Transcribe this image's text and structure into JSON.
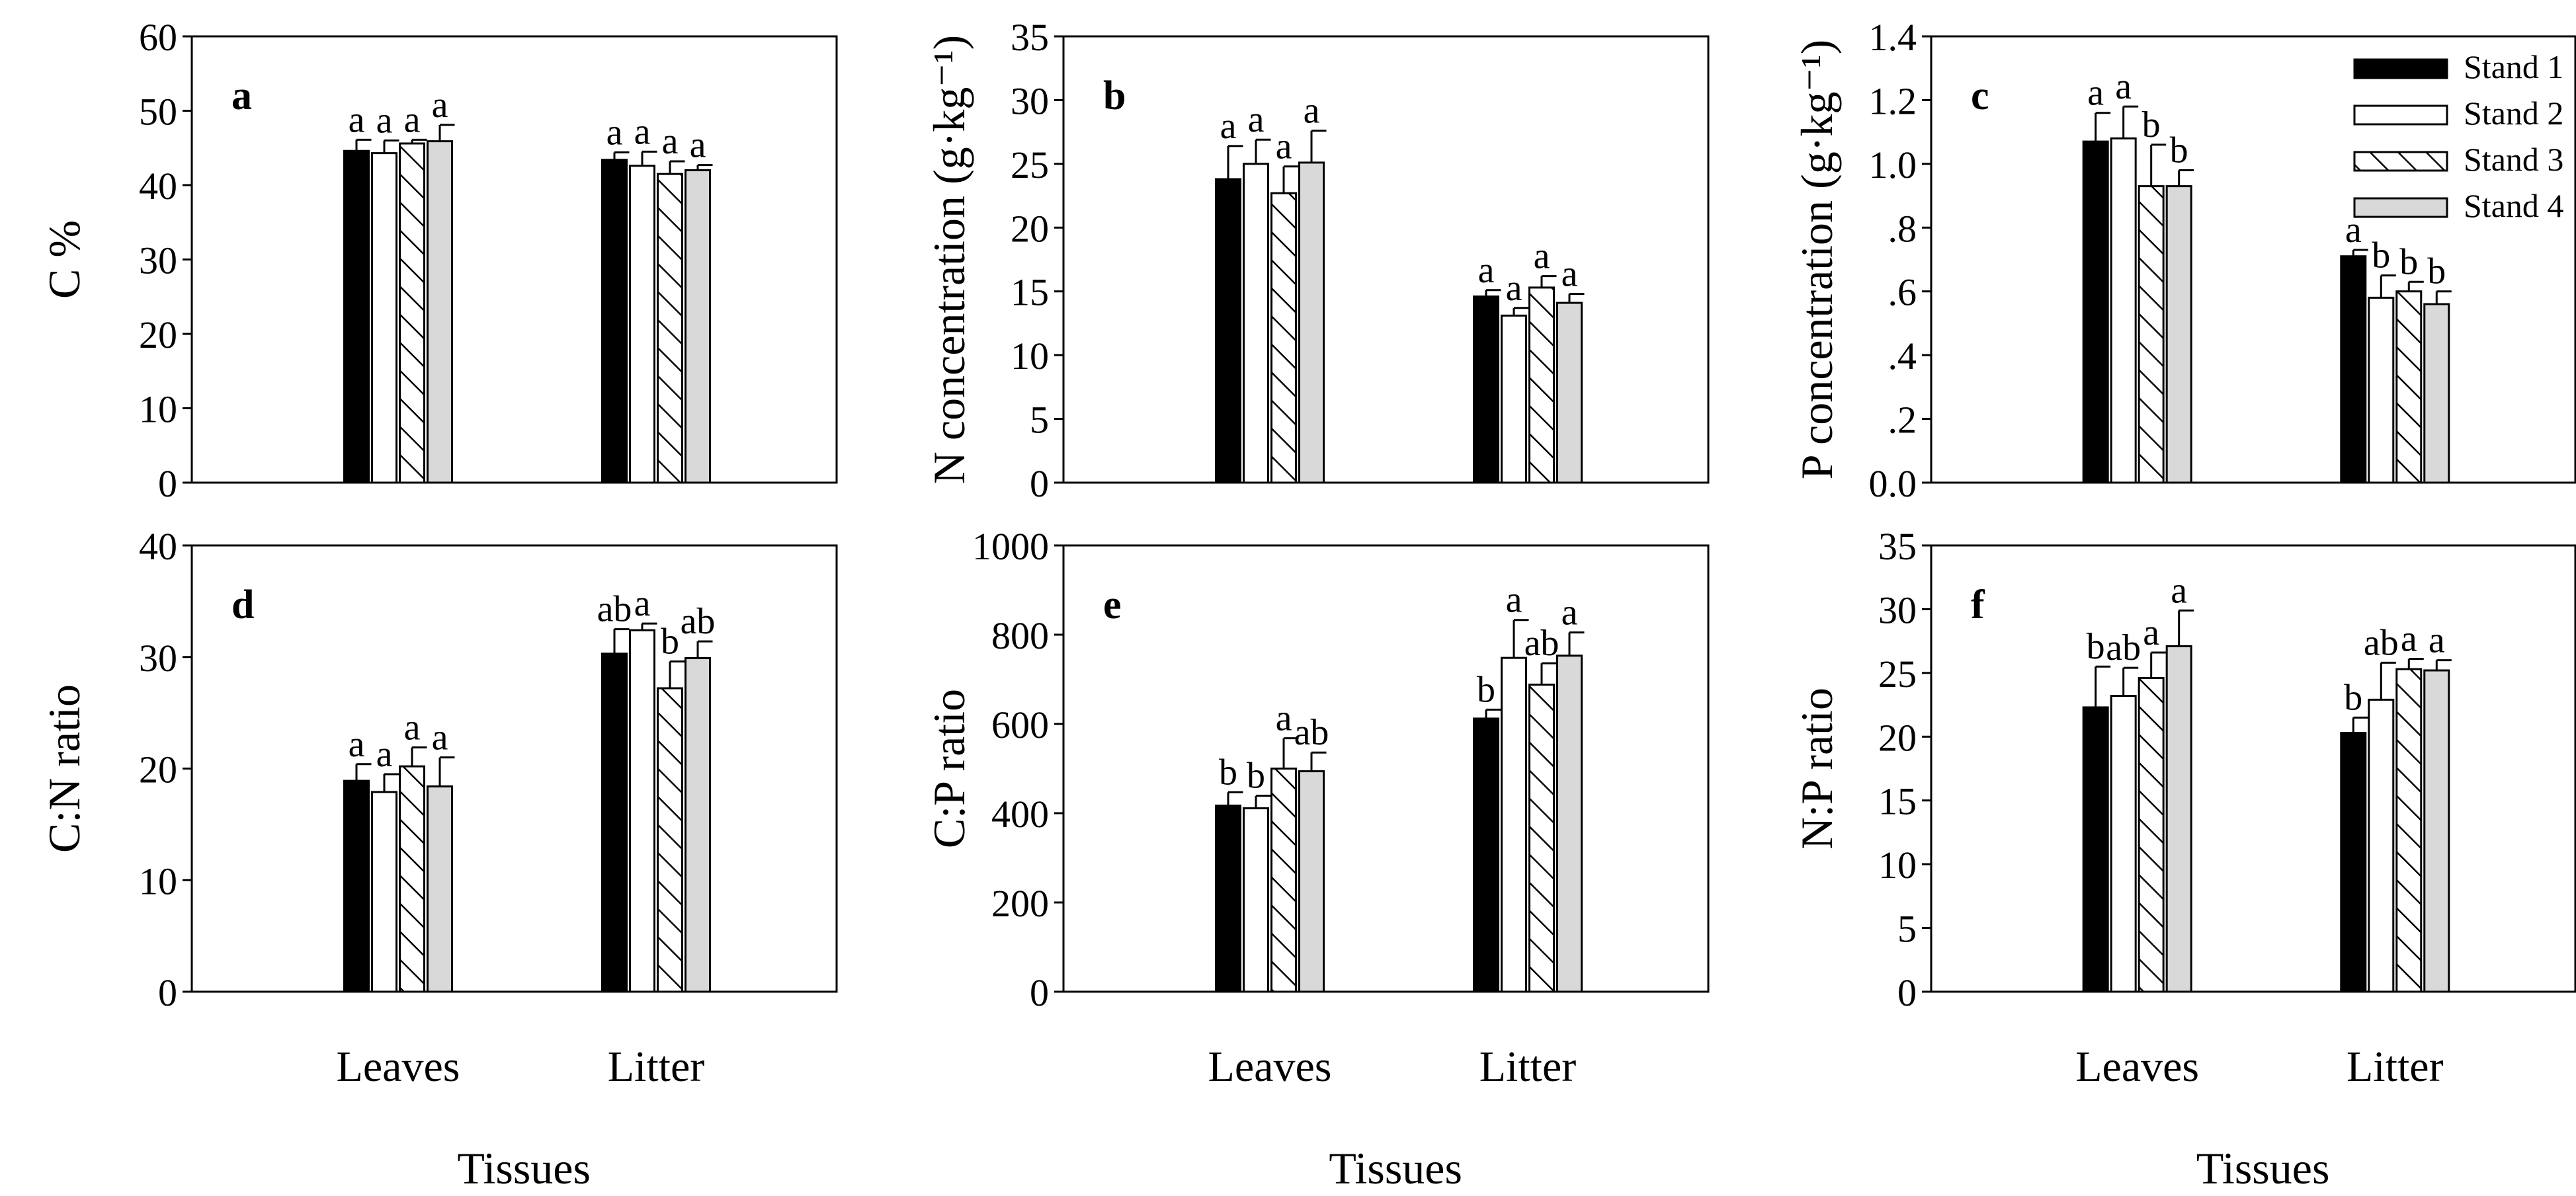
{
  "shared": {
    "categories": [
      "Leaves",
      "Litter"
    ],
    "series": [
      "Stand 1",
      "Stand 2",
      "Stand 3",
      "Stand 4"
    ],
    "xlabel": "Tissues",
    "colors": {
      "stand1": "#000000",
      "stand2": "#ffffff",
      "stand3": "#ffffff",
      "stand4": "#d9d9d9",
      "axis": "#000000"
    }
  },
  "chart_data": [
    {
      "type": "bar",
      "panel": "a",
      "ylabel": "C %",
      "ylim": [
        0,
        60
      ],
      "yticks": [
        0,
        10,
        20,
        30,
        40,
        50,
        60
      ],
      "yticklabels": [
        "0",
        "10",
        "20",
        "30",
        "40",
        "50",
        "60"
      ],
      "categories": [
        "Leaves",
        "Litter"
      ],
      "series": [
        {
          "name": "Stand 1",
          "values": [
            44.6,
            43.4
          ],
          "errors": [
            1.5,
            1.0
          ],
          "letters": [
            "a",
            "a"
          ]
        },
        {
          "name": "Stand 2",
          "values": [
            44.3,
            42.6
          ],
          "errors": [
            1.7,
            1.9
          ],
          "letters": [
            "a",
            "a"
          ]
        },
        {
          "name": "Stand 3",
          "values": [
            45.6,
            41.5
          ],
          "errors": [
            0.5,
            1.7
          ],
          "letters": [
            "a",
            "a"
          ]
        },
        {
          "name": "Stand 4",
          "values": [
            45.9,
            42.0
          ],
          "errors": [
            2.2,
            0.7
          ],
          "letters": [
            "a",
            "a"
          ]
        }
      ]
    },
    {
      "type": "bar",
      "panel": "b",
      "ylabel": "N concentration (g·kg⁻¹)",
      "ylim": [
        0,
        35
      ],
      "yticks": [
        0,
        5,
        10,
        15,
        20,
        25,
        30,
        35
      ],
      "yticklabels": [
        "0",
        "5",
        "10",
        "15",
        "20",
        "25",
        "30",
        "35"
      ],
      "categories": [
        "Leaves",
        "Litter"
      ],
      "series": [
        {
          "name": "Stand 1",
          "values": [
            23.8,
            14.6
          ],
          "errors": [
            2.6,
            0.5
          ],
          "letters": [
            "a",
            "a"
          ]
        },
        {
          "name": "Stand 2",
          "values": [
            25.0,
            13.1
          ],
          "errors": [
            1.9,
            0.6
          ],
          "letters": [
            "a",
            "a"
          ]
        },
        {
          "name": "Stand 3",
          "values": [
            22.7,
            15.3
          ],
          "errors": [
            2.1,
            0.9
          ],
          "letters": [
            "a",
            "a"
          ]
        },
        {
          "name": "Stand 4",
          "values": [
            25.1,
            14.1
          ],
          "errors": [
            2.5,
            0.7
          ],
          "letters": [
            "a",
            "a"
          ]
        }
      ]
    },
    {
      "type": "bar",
      "panel": "c",
      "ylabel": "P concentration (g·kg⁻¹)",
      "ylim": [
        0,
        1.4
      ],
      "yticks": [
        0,
        0.2,
        0.4,
        0.6,
        0.8,
        1.0,
        1.2,
        1.4
      ],
      "yticklabels": [
        "0.0",
        ".2",
        ".4",
        ".6",
        ".8",
        "1.0",
        "1.2",
        "1.4"
      ],
      "categories": [
        "Leaves",
        "Litter"
      ],
      "series": [
        {
          "name": "Stand 1",
          "values": [
            1.07,
            0.71
          ],
          "errors": [
            0.09,
            0.02
          ],
          "letters": [
            "a",
            "a"
          ]
        },
        {
          "name": "Stand 2",
          "values": [
            1.08,
            0.58
          ],
          "errors": [
            0.1,
            0.07
          ],
          "letters": [
            "a",
            "b"
          ]
        },
        {
          "name": "Stand 3",
          "values": [
            0.93,
            0.6
          ],
          "errors": [
            0.13,
            0.03
          ],
          "letters": [
            "b",
            "b"
          ]
        },
        {
          "name": "Stand 4",
          "values": [
            0.93,
            0.56
          ],
          "errors": [
            0.05,
            0.04
          ],
          "letters": [
            "b",
            "b"
          ]
        }
      ]
    },
    {
      "type": "bar",
      "panel": "d",
      "ylabel": "C:N ratio",
      "ylim": [
        0,
        40
      ],
      "yticks": [
        0,
        10,
        20,
        30,
        40
      ],
      "yticklabels": [
        "0",
        "10",
        "20",
        "30",
        "40"
      ],
      "categories": [
        "Leaves",
        "Litter"
      ],
      "series": [
        {
          "name": "Stand 1",
          "values": [
            18.9,
            30.3
          ],
          "errors": [
            1.5,
            2.2
          ],
          "letters": [
            "a",
            "ab"
          ]
        },
        {
          "name": "Stand 2",
          "values": [
            17.9,
            32.4
          ],
          "errors": [
            1.6,
            0.6
          ],
          "letters": [
            "a",
            "a"
          ]
        },
        {
          "name": "Stand 3",
          "values": [
            20.2,
            27.2
          ],
          "errors": [
            1.7,
            2.4
          ],
          "letters": [
            "a",
            "b"
          ]
        },
        {
          "name": "Stand 4",
          "values": [
            18.4,
            29.9
          ],
          "errors": [
            2.6,
            1.5
          ],
          "letters": [
            "a",
            "ab"
          ]
        }
      ]
    },
    {
      "type": "bar",
      "panel": "e",
      "ylabel": "C:P ratio",
      "ylim": [
        0,
        1000
      ],
      "yticks": [
        0,
        200,
        400,
        600,
        800,
        1000
      ],
      "yticklabels": [
        "0",
        "200",
        "400",
        "600",
        "800",
        "1000"
      ],
      "categories": [
        "Leaves",
        "Litter"
      ],
      "series": [
        {
          "name": "Stand 1",
          "values": [
            417,
            612
          ],
          "errors": [
            30,
            20
          ],
          "letters": [
            "b",
            "b"
          ]
        },
        {
          "name": "Stand 2",
          "values": [
            411,
            748
          ],
          "errors": [
            28,
            85
          ],
          "letters": [
            "b",
            "a"
          ]
        },
        {
          "name": "Stand 3",
          "values": [
            500,
            688
          ],
          "errors": [
            68,
            48
          ],
          "letters": [
            "a",
            "ab"
          ]
        },
        {
          "name": "Stand 4",
          "values": [
            494,
            753
          ],
          "errors": [
            42,
            52
          ],
          "letters": [
            "ab",
            "a"
          ]
        }
      ]
    },
    {
      "type": "bar",
      "panel": "f",
      "ylabel": "N:P ratio",
      "ylim": [
        0,
        35
      ],
      "yticks": [
        0,
        5,
        10,
        15,
        20,
        25,
        30,
        35
      ],
      "yticklabels": [
        "0",
        "5",
        "10",
        "15",
        "20",
        "25",
        "30",
        "35"
      ],
      "legend_position": "top-right",
      "categories": [
        "Leaves",
        "Litter"
      ],
      "series": [
        {
          "name": "Stand 1",
          "values": [
            22.3,
            20.3
          ],
          "errors": [
            3.2,
            1.2
          ],
          "letters": [
            "b",
            "b"
          ]
        },
        {
          "name": "Stand 2",
          "values": [
            23.2,
            22.9
          ],
          "errors": [
            2.2,
            2.9
          ],
          "letters": [
            "ab",
            "ab"
          ]
        },
        {
          "name": "Stand 3",
          "values": [
            24.6,
            25.3
          ],
          "errors": [
            2.0,
            0.8
          ],
          "letters": [
            "a",
            "a"
          ]
        },
        {
          "name": "Stand 4",
          "values": [
            27.1,
            25.2
          ],
          "errors": [
            2.8,
            0.8
          ],
          "letters": [
            "a",
            "a"
          ]
        }
      ]
    }
  ]
}
